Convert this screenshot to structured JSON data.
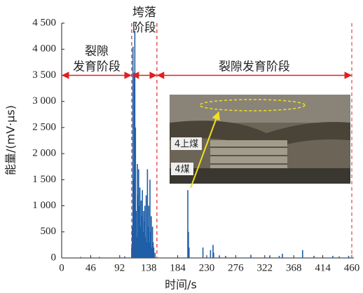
{
  "chart_data": {
    "type": "bar",
    "x_label": "时间/s",
    "y_label": "能量/(mV·μs)",
    "x": [
      30,
      60,
      100,
      111,
      112,
      113,
      114,
      115,
      116,
      117,
      118,
      119,
      120,
      121,
      122,
      123,
      124,
      125,
      126,
      127,
      128,
      129,
      130,
      131,
      132,
      133,
      134,
      135,
      136,
      137,
      138,
      139,
      140,
      141,
      142,
      143,
      144,
      145,
      146,
      148,
      200,
      201,
      202,
      224,
      236,
      240,
      241,
      250,
      260,
      300,
      330,
      345,
      350,
      382,
      400,
      430,
      440,
      455
    ],
    "values": [
      20,
      20,
      30,
      200,
      600,
      4050,
      1500,
      3550,
      4350,
      2500,
      900,
      400,
      1800,
      1200,
      1700,
      1000,
      1350,
      600,
      1100,
      800,
      1300,
      500,
      900,
      700,
      1000,
      400,
      1200,
      300,
      1700,
      600,
      1000,
      300,
      1500,
      500,
      800,
      200,
      600,
      300,
      200,
      100,
      1300,
      500,
      200,
      200,
      150,
      250,
      100,
      50,
      40,
      60,
      50,
      40,
      80,
      150,
      40,
      40,
      30,
      40
    ],
    "color": "#1f5fa8",
    "xlim": [
      0,
      460
    ],
    "xticks": [
      0,
      46,
      92,
      138,
      184,
      230,
      276,
      322,
      368,
      414,
      460
    ],
    "ylim": [
      0,
      4500
    ],
    "yticks": [
      0,
      500,
      {
        "value": 1000,
        "label": "1 000"
      },
      {
        "value": 1500,
        "label": "1 500"
      },
      {
        "value": 2000,
        "label": "2 000"
      },
      {
        "value": 2500,
        "label": "2 500"
      },
      {
        "value": 3000,
        "label": "3 000"
      },
      {
        "value": 3500,
        "label": "3 500"
      },
      {
        "value": 4000,
        "label": "4 000"
      },
      {
        "value": 4500,
        "label": "4 500"
      }
    ],
    "stages": [
      {
        "label": [
          "裂隙",
          "发育阶段"
        ],
        "start": 0,
        "end": 111
      },
      {
        "label": [
          "垮落",
          "阶段"
        ],
        "start": 111,
        "end": 151
      },
      {
        "label": [
          "裂隙发育阶段"
        ],
        "start": 151,
        "end": 460
      }
    ],
    "stage_arrow_level": 3500,
    "photo_labels": [
      "4上煤",
      "4煤"
    ]
  }
}
